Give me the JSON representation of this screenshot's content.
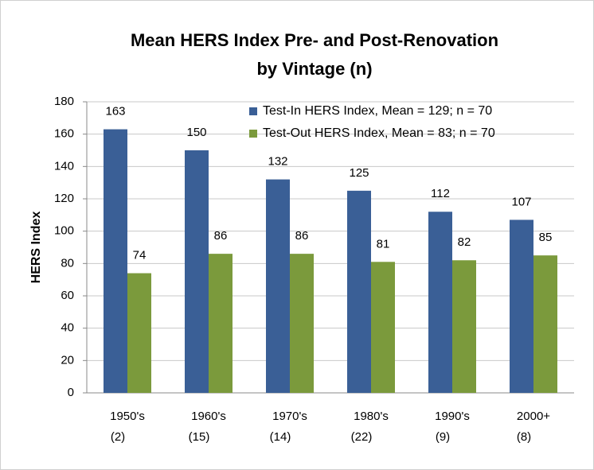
{
  "chart_data": {
    "type": "bar",
    "title": [
      "Mean HERS Index Pre- and Post-Renovation",
      "by Vintage (n)"
    ],
    "y_label": "HERS Index",
    "categories": [
      "1950's",
      "1960's",
      "1970's",
      "1980's",
      "1990's",
      "2000+"
    ],
    "category_notes": [
      "(2)",
      "(15)",
      "(14)",
      "(22)",
      "(9)",
      "(8)"
    ],
    "series": [
      {
        "name": "Test-In HERS Index, Mean = 129; n = 70",
        "color": "#3a5f96",
        "values": [
          163,
          150,
          132,
          125,
          112,
          107
        ]
      },
      {
        "name": "Test-Out HERS Index, Mean = 83; n = 70",
        "color": "#7b9a3c",
        "values": [
          74,
          86,
          86,
          81,
          82,
          85
        ]
      }
    ],
    "ylim": [
      0,
      180
    ],
    "yticks": [
      0,
      20,
      40,
      60,
      80,
      100,
      120,
      140,
      160,
      180
    ],
    "grid": true,
    "legend": "top-right"
  }
}
